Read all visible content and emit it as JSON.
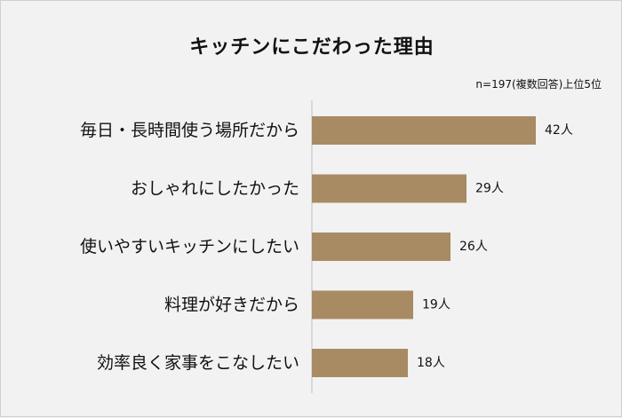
{
  "title": "キッチンにこだわった理由",
  "note": "n=197(複数回答)上位5位",
  "chart_data": {
    "type": "bar",
    "orientation": "horizontal",
    "title": "キッチンにこだわった理由",
    "categories": [
      "毎日・長時間使う場所だから",
      "おしゃれにしたかった",
      "使いやすいキッチンにしたい",
      "料理が好きだから",
      "効率良く家事をこなしたい"
    ],
    "values": [
      42,
      29,
      26,
      19,
      18
    ],
    "value_labels": [
      "42人",
      "29人",
      "26人",
      "19人",
      "18人"
    ],
    "unit": "人",
    "bar_color": "#a88b63",
    "xlim": [
      0,
      42
    ],
    "grid": false
  }
}
